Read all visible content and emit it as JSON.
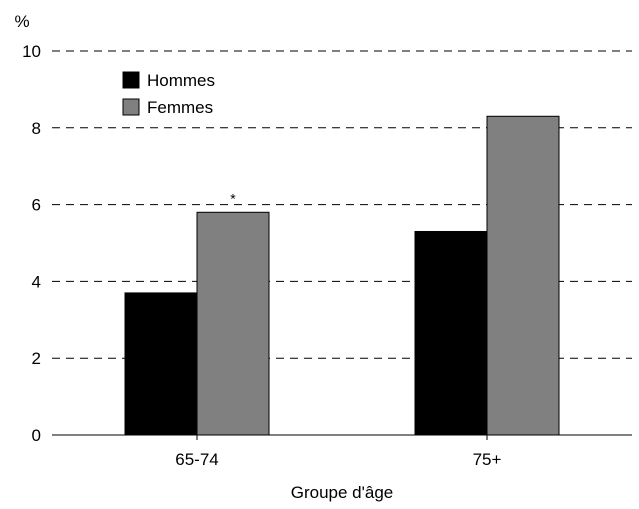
{
  "chart_data": {
    "type": "bar",
    "title": "",
    "xlabel": "Groupe d'âge",
    "ylabel": "%",
    "categories": [
      "65-74",
      "75+"
    ],
    "series": [
      {
        "name": "Hommes",
        "values": [
          3.7,
          5.3
        ],
        "color": "#000000"
      },
      {
        "name": "Femmes",
        "values": [
          5.8,
          8.3
        ],
        "color": "#808080"
      }
    ],
    "ylim": [
      0,
      10
    ],
    "yticks": [
      "0",
      "2",
      "4",
      "6",
      "8",
      "10"
    ],
    "grid": true,
    "grid_style": "dashed",
    "legend_position": "top-left",
    "annotations": [
      {
        "text": "*",
        "category": "65-74",
        "series": "Femmes"
      }
    ]
  }
}
